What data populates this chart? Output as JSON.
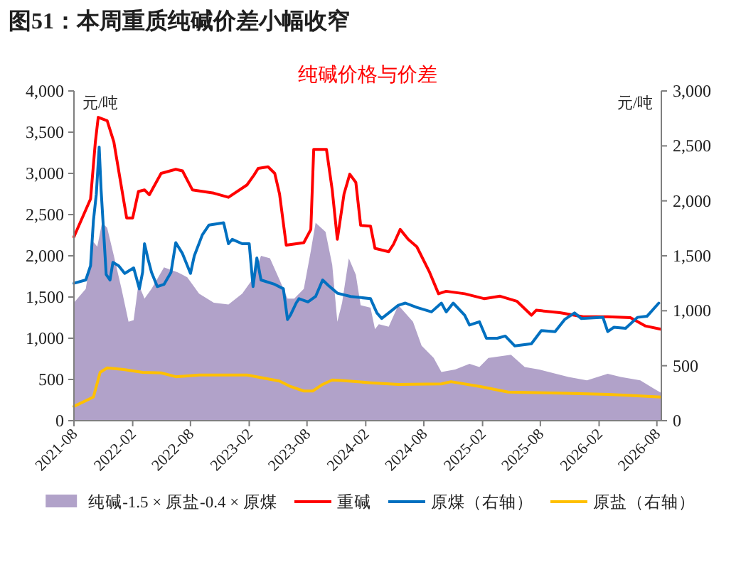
{
  "chart_data": {
    "type": "line",
    "title": "图51：本周重质纯碱价差小幅收窄",
    "subtitle": "纯碱价格与价差",
    "ylabel": "元/吨",
    "y2label": "元/吨",
    "xlim": [
      "2021-08-01",
      "2026-08-15"
    ],
    "xticks": [
      "2021-08",
      "2022-02",
      "2022-08",
      "2023-02",
      "2023-08",
      "2024-02",
      "2024-08",
      "2025-02",
      "2025-08",
      "2026-02",
      "2026-08"
    ],
    "ylim": [
      0,
      4000
    ],
    "yticks": [
      {
        "value": 0,
        "label": "0"
      },
      {
        "value": 500,
        "label": "500"
      },
      {
        "value": 1000,
        "label": "1,000"
      },
      {
        "value": 1500,
        "label": "1,500"
      },
      {
        "value": 2000,
        "label": "2,000"
      },
      {
        "value": 2500,
        "label": "2,500"
      },
      {
        "value": 3000,
        "label": "3,000"
      },
      {
        "value": 3500,
        "label": "3,500"
      },
      {
        "value": 4000,
        "label": "4,000"
      }
    ],
    "y2lim": [
      0,
      3000
    ],
    "y2ticks": [
      {
        "value": 0,
        "label": "0"
      },
      {
        "value": 500,
        "label": "500"
      },
      {
        "value": 1000,
        "label": "1,000"
      },
      {
        "value": 1500,
        "label": "1,500"
      },
      {
        "value": 2000,
        "label": "2,000"
      },
      {
        "value": 2500,
        "label": "2,500"
      },
      {
        "value": 3000,
        "label": "3,000"
      }
    ],
    "grid": false,
    "legend": "bottom",
    "marker": "none",
    "series": [
      {
        "name": "纯碱-1.5 × 原盐-0.4 × 原煤",
        "type": "area",
        "color": "#b1a2c9",
        "x": [
          "2021-08-01",
          "2021-09-07",
          "2021-10-01",
          "2021-10-13",
          "2021-10-28",
          "2021-11-13",
          "2021-12-04",
          "2021-12-28",
          "2022-01-19",
          "2022-02-04",
          "2022-02-19",
          "2022-03-10",
          "2022-04-01",
          "2022-05-10",
          "2022-06-22",
          "2022-07-22",
          "2022-08-28",
          "2022-10-13",
          "2022-11-28",
          "2023-01-10",
          "2023-02-10",
          "2023-03-10",
          "2023-04-07",
          "2023-05-07",
          "2023-06-01",
          "2023-06-22",
          "2023-07-22",
          "2023-08-13",
          "2023-08-28",
          "2023-09-28",
          "2023-10-19",
          "2023-11-04",
          "2023-11-19",
          "2023-12-10",
          "2024-01-01",
          "2024-01-16",
          "2024-02-16",
          "2024-03-01",
          "2024-03-13",
          "2024-04-13",
          "2024-05-13",
          "2024-06-28",
          "2024-07-25",
          "2024-09-01",
          "2024-09-25",
          "2024-11-07",
          "2024-12-22",
          "2025-01-22",
          "2025-02-19",
          "2025-05-01",
          "2025-06-13",
          "2025-07-28",
          "2025-10-28",
          "2025-12-25",
          "2026-02-28",
          "2026-04-10",
          "2026-06-10",
          "2026-07-22",
          "2026-08-13"
        ],
        "values": [
          1430,
          1600,
          2170,
          2110,
          2400,
          2340,
          2000,
          1600,
          1200,
          1220,
          1660,
          1480,
          1600,
          1860,
          1800,
          1740,
          1540,
          1430,
          1410,
          1540,
          1710,
          2000,
          1970,
          1710,
          1480,
          1480,
          1600,
          2060,
          2400,
          2290,
          1890,
          1200,
          1430,
          1970,
          1770,
          1400,
          1370,
          1110,
          1170,
          1140,
          1400,
          1200,
          910,
          760,
          590,
          620,
          690,
          650,
          760,
          800,
          650,
          620,
          530,
          490,
          570,
          530,
          490,
          390,
          340
        ]
      },
      {
        "name": "重碱",
        "color": "#ff0000",
        "x": [
          "2021-08-01",
          "2021-09-22",
          "2021-10-07",
          "2021-10-16",
          "2021-11-13",
          "2021-12-04",
          "2022-01-13",
          "2022-02-01",
          "2022-02-19",
          "2022-03-10",
          "2022-03-25",
          "2022-05-01",
          "2022-06-16",
          "2022-07-07",
          "2022-08-07",
          "2022-10-13",
          "2022-11-28",
          "2023-01-25",
          "2023-02-16",
          "2023-03-01",
          "2023-04-01",
          "2023-04-22",
          "2023-05-07",
          "2023-05-28",
          "2023-07-22",
          "2023-08-13",
          "2023-08-22",
          "2023-10-01",
          "2023-10-19",
          "2023-11-04",
          "2023-11-25",
          "2023-12-13",
          "2024-01-01",
          "2024-01-16",
          "2024-02-16",
          "2024-03-01",
          "2024-04-13",
          "2024-04-28",
          "2024-05-19",
          "2024-06-13",
          "2024-07-10",
          "2024-08-19",
          "2024-09-16",
          "2024-10-10",
          "2024-12-07",
          "2025-02-07",
          "2025-03-28",
          "2025-05-19",
          "2025-07-04",
          "2025-07-19",
          "2025-10-01",
          "2025-12-13",
          "2026-02-28",
          "2026-05-10",
          "2026-06-25",
          "2026-08-13"
        ],
        "values": [
          2230,
          2690,
          3380,
          3680,
          3640,
          3380,
          2460,
          2460,
          2780,
          2800,
          2740,
          3000,
          3050,
          3030,
          2800,
          2760,
          2710,
          2860,
          2980,
          3060,
          3080,
          3000,
          2750,
          2130,
          2160,
          2320,
          3290,
          3290,
          2800,
          2200,
          2750,
          2990,
          2890,
          2370,
          2360,
          2090,
          2050,
          2140,
          2320,
          2200,
          2110,
          1800,
          1540,
          1570,
          1540,
          1480,
          1510,
          1450,
          1280,
          1340,
          1310,
          1260,
          1260,
          1250,
          1150,
          1110
        ]
      },
      {
        "name": "原煤（右轴）",
        "color": "#0070c0",
        "axis": "y2",
        "x": [
          "2021-08-01",
          "2021-09-07",
          "2021-09-22",
          "2021-10-01",
          "2021-10-10",
          "2021-10-19",
          "2021-10-25",
          "2021-11-10",
          "2021-11-22",
          "2021-12-01",
          "2021-12-19",
          "2022-01-07",
          "2022-02-04",
          "2022-02-22",
          "2022-03-04",
          "2022-03-10",
          "2022-03-22",
          "2022-04-01",
          "2022-04-19",
          "2022-05-10",
          "2022-06-01",
          "2022-06-16",
          "2022-07-07",
          "2022-08-01",
          "2022-08-13",
          "2022-09-07",
          "2022-09-28",
          "2022-11-13",
          "2022-11-28",
          "2022-12-10",
          "2023-01-10",
          "2023-02-01",
          "2023-02-13",
          "2023-02-25",
          "2023-03-10",
          "2023-04-22",
          "2023-05-19",
          "2023-06-01",
          "2023-06-10",
          "2023-06-28",
          "2023-07-07",
          "2023-08-04",
          "2023-08-28",
          "2023-09-19",
          "2023-10-07",
          "2023-11-04",
          "2023-12-16",
          "2024-02-16",
          "2024-03-07",
          "2024-03-22",
          "2024-04-13",
          "2024-05-13",
          "2024-06-04",
          "2024-07-10",
          "2024-08-25",
          "2024-09-25",
          "2024-10-10",
          "2024-11-01",
          "2024-12-07",
          "2024-12-22",
          "2025-01-22",
          "2025-02-13",
          "2025-03-19",
          "2025-04-13",
          "2025-05-13",
          "2025-07-04",
          "2025-08-04",
          "2025-09-16",
          "2025-10-16",
          "2025-11-16",
          "2025-12-07",
          "2026-02-13",
          "2026-02-28",
          "2026-03-19",
          "2026-04-25",
          "2026-06-01",
          "2026-07-01",
          "2026-08-07"
        ],
        "values": [
          1250,
          1280,
          1410,
          1820,
          2060,
          2490,
          2100,
          1330,
          1280,
          1440,
          1410,
          1340,
          1390,
          1200,
          1350,
          1610,
          1460,
          1350,
          1220,
          1240,
          1350,
          1620,
          1520,
          1340,
          1500,
          1690,
          1780,
          1800,
          1610,
          1650,
          1610,
          1610,
          1220,
          1480,
          1280,
          1240,
          1200,
          920,
          960,
          1070,
          1110,
          1080,
          1130,
          1280,
          1230,
          1160,
          1130,
          1110,
          980,
          930,
          980,
          1050,
          1070,
          1030,
          990,
          1070,
          990,
          1070,
          960,
          870,
          900,
          750,
          750,
          770,
          680,
          700,
          820,
          810,
          920,
          980,
          930,
          940,
          810,
          850,
          840,
          940,
          950,
          1070
        ]
      },
      {
        "name": "原盐（右轴）",
        "color": "#ffc000",
        "axis": "y2",
        "x": [
          "2021-08-01",
          "2021-10-01",
          "2021-10-22",
          "2021-11-13",
          "2022-01-04",
          "2022-03-04",
          "2022-05-01",
          "2022-06-16",
          "2022-08-28",
          "2023-01-25",
          "2023-05-07",
          "2023-06-07",
          "2023-07-22",
          "2023-08-19",
          "2023-09-19",
          "2023-10-19",
          "2023-11-19",
          "2024-02-16",
          "2024-05-13",
          "2024-09-25",
          "2024-10-25",
          "2025-01-25",
          "2025-04-22",
          "2025-10-01",
          "2026-02-28",
          "2026-05-10",
          "2026-08-13"
        ],
        "values": [
          130,
          215,
          440,
          480,
          465,
          440,
          435,
          400,
          415,
          415,
          360,
          315,
          270,
          270,
          330,
          370,
          365,
          345,
          330,
          335,
          355,
          310,
          260,
          250,
          240,
          230,
          215
        ]
      }
    ]
  }
}
